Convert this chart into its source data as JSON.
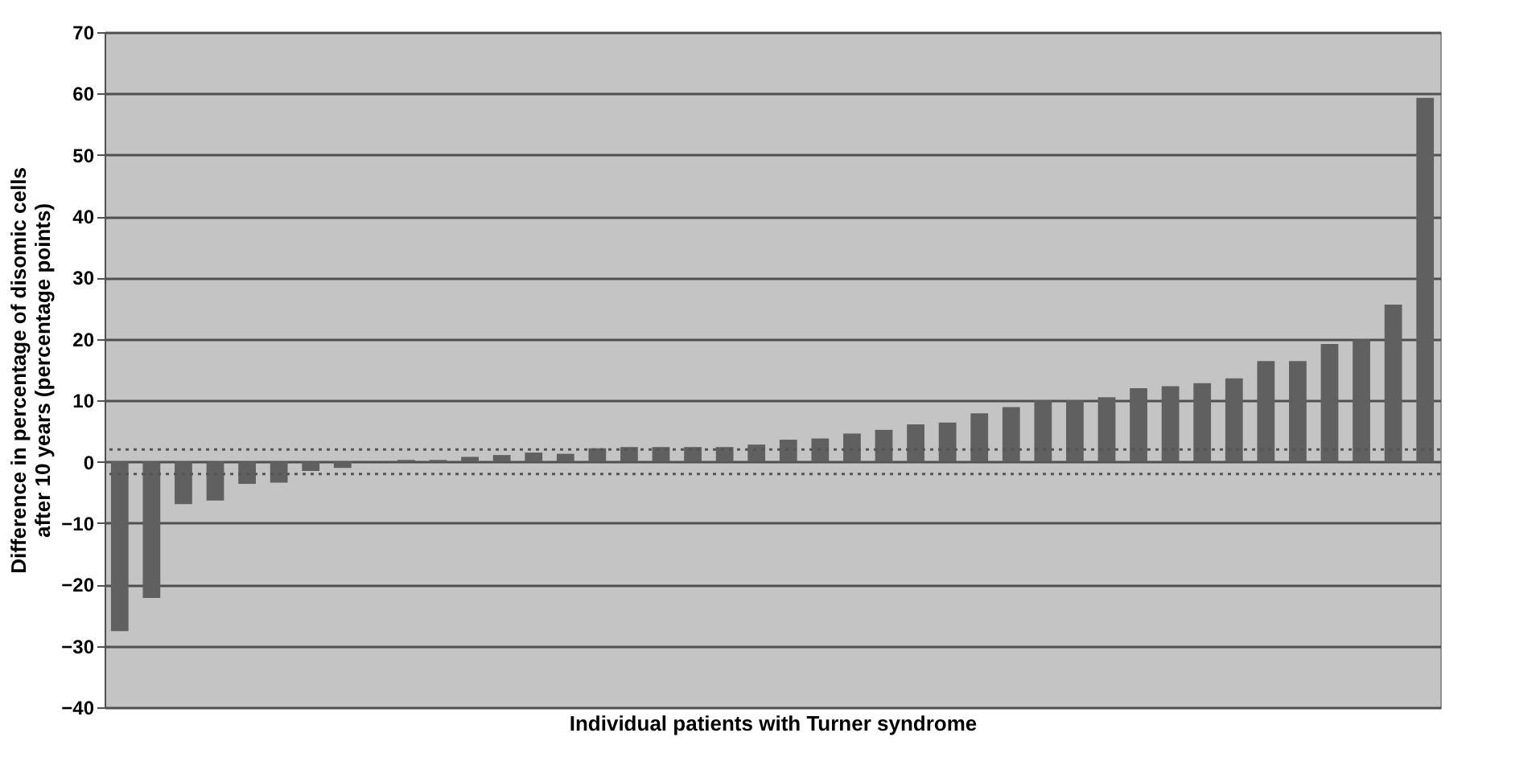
{
  "chart_data": {
    "type": "bar",
    "xlabel": "Individual patients with Turner syndrome",
    "ylabel": "Difference in percentage of disomic cells\nafter 10 years (percentage points)",
    "categories": [
      null,
      null,
      null,
      null,
      null,
      null,
      null,
      null,
      null,
      null,
      null,
      null,
      null,
      null,
      null,
      null,
      null,
      null,
      null,
      null,
      null,
      null,
      null,
      null,
      null,
      null,
      null,
      null,
      null,
      null,
      null,
      null,
      null,
      null,
      null,
      null,
      null,
      null,
      null,
      null,
      null,
      null
    ],
    "values": [
      -27.6,
      -22.2,
      -6.9,
      -6.3,
      -3.6,
      -3.4,
      -1.5,
      -1,
      0,
      0.3,
      0.3,
      0.8,
      1.1,
      1.5,
      1.3,
      2.2,
      2.4,
      2.4,
      2.4,
      2.4,
      2.8,
      3.6,
      3.8,
      4.6,
      5.2,
      6.1,
      6.4,
      7.9,
      8.9,
      10,
      10,
      10.5,
      12,
      12.3,
      12.8,
      13.6,
      16.4,
      16.4,
      19.2,
      19.9,
      25.6,
      59.3
    ],
    "color": "#606060",
    "ylim": [
      -40,
      70
    ],
    "yticks": [
      -40,
      -30,
      -20,
      -10,
      0,
      10,
      20,
      30,
      40,
      50,
      60,
      70
    ],
    "grid": "y",
    "tick_labels": "y",
    "ref_lines": [
      {
        "axis": "y",
        "value": 2,
        "color": "#555555",
        "line_style": "dotted"
      },
      {
        "axis": "y",
        "value": -2,
        "color": "#555555",
        "line_style": "dotted"
      }
    ]
  }
}
